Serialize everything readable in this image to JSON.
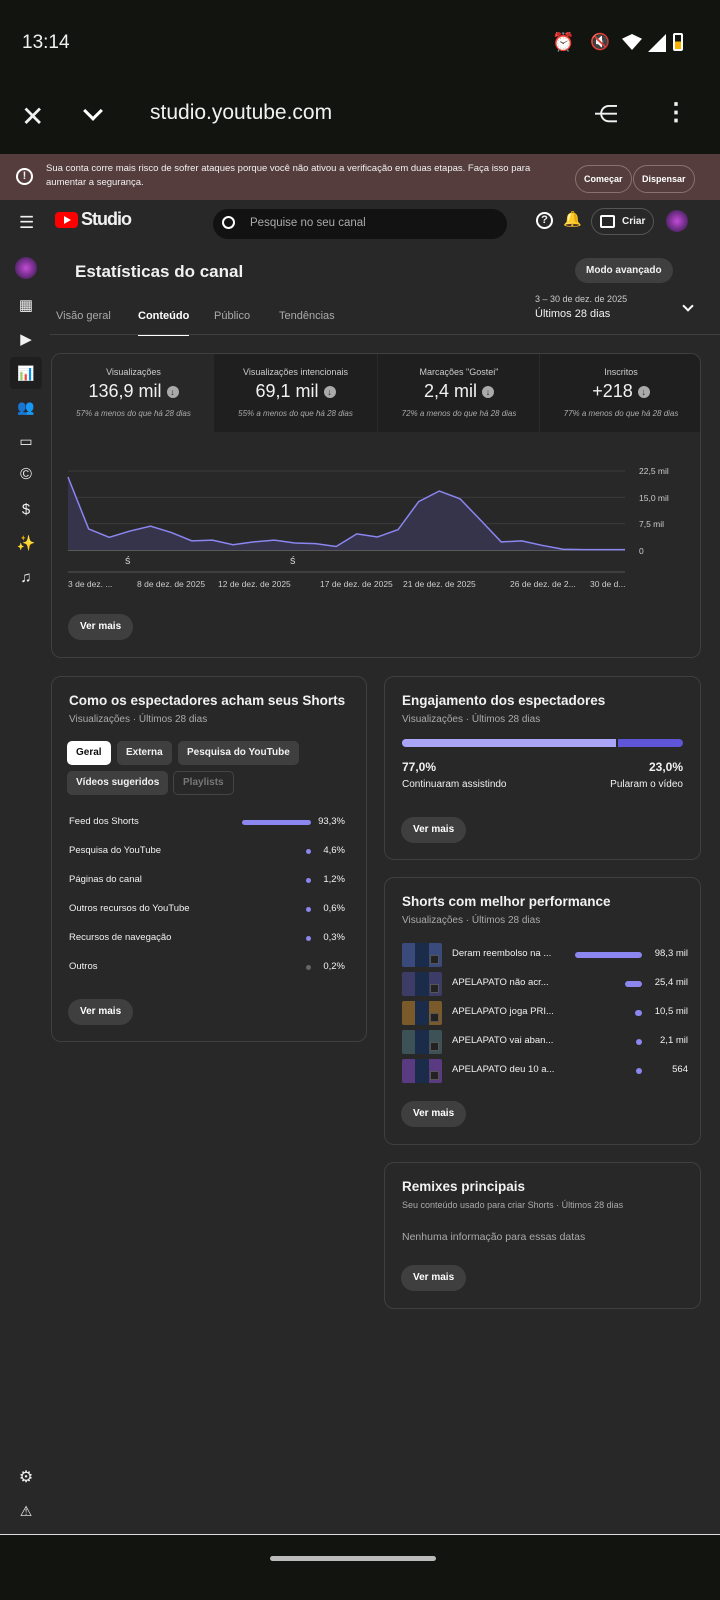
{
  "status": {
    "time": "13:14"
  },
  "browser": {
    "url": "studio.youtube.com"
  },
  "banner": {
    "text": "Sua conta corre mais risco de sofrer ataques porque você não ativou a verificação em duas etapas. Faça isso para aumentar a segurança.",
    "start": "Começar",
    "dismiss": "Dispensar"
  },
  "header": {
    "logo": "Studio",
    "search_placeholder": "Pesquise no seu canal",
    "create": "Criar"
  },
  "page": {
    "title": "Estatísticas do canal",
    "advanced": "Modo avançado",
    "tabs": [
      "Visão geral",
      "Conteúdo",
      "Público",
      "Tendências"
    ],
    "active_tab": "Conteúdo",
    "date_range": "3 – 30 de dez. de 2025",
    "period": "Últimos 28 dias"
  },
  "stats": [
    {
      "label": "Visualizações",
      "value": "136,9 mil",
      "change": "57% a menos do que há 28 dias"
    },
    {
      "label": "Visualizações intencionais",
      "value": "69,1 mil",
      "change": "55% a menos do que há 28 dias"
    },
    {
      "label": "Marcações \"Gostei\"",
      "value": "2,4 mil",
      "change": "72% a menos do que há 28 dias"
    },
    {
      "label": "Inscritos",
      "value": "+218",
      "change": "77% a menos do que há 28 dias"
    }
  ],
  "chart_data": {
    "type": "area",
    "series": [
      {
        "name": "Visualizações (mil)",
        "values": [
          20.8,
          6.0,
          3.6,
          5.4,
          6.8,
          5.0,
          2.6,
          2.8,
          1.5,
          2.3,
          2.8,
          2.0,
          1.8,
          1.0,
          4.6,
          3.7,
          5.8,
          13.8,
          16.8,
          14.6,
          8.5,
          2.3,
          2.6,
          1.3,
          0.2,
          0.1,
          0.1,
          0.1
        ]
      }
    ],
    "x_start_day": 3,
    "ylim": [
      0,
      22.5
    ],
    "yticks": [
      "22,5 mil",
      "15,0 mil",
      "7,5 mil",
      "0"
    ],
    "xticks": [
      "3 de dez. ...",
      "8 de dez. de 2025",
      "12 de dez. de 2025",
      "17 de dez. de 2025",
      "21 de dez. de 2025",
      "26 de dez. de 2...",
      "30 de d..."
    ],
    "color": "#8b86f0"
  },
  "see_more": "Ver mais",
  "traffic": {
    "title": "Como os espectadores acham seus Shorts",
    "subtitle": "Visualizações · Últimos 28 dias",
    "chips": [
      "Geral",
      "Externa",
      "Pesquisa do YouTube",
      "Vídeos sugeridos",
      "Playlists"
    ],
    "rows": [
      {
        "label": "Feed dos Shorts",
        "value": "93,3%",
        "pct": 93.3
      },
      {
        "label": "Pesquisa do YouTube",
        "value": "4,6%",
        "pct": 4.6
      },
      {
        "label": "Páginas do canal",
        "value": "1,2%",
        "pct": 1.2
      },
      {
        "label": "Outros recursos do YouTube",
        "value": "0,6%",
        "pct": 0.6
      },
      {
        "label": "Recursos de navegação",
        "value": "0,3%",
        "pct": 0.3
      },
      {
        "label": "Outros",
        "value": "0,2%",
        "pct": 0.2
      }
    ]
  },
  "engagement": {
    "title": "Engajamento dos espectadores",
    "subtitle": "Visualizações · Últimos 28 dias",
    "kept": "77,0%",
    "kept_label": "Continuaram assistindo",
    "kept_pct": 77,
    "skipped": "23,0%",
    "skipped_label": "Pularam o vídeo"
  },
  "top_shorts": {
    "title": "Shorts com melhor performance",
    "subtitle": "Visualizações · Últimos 28 dias",
    "items": [
      {
        "title": "Deram reembolso na ...",
        "value": "98,3 mil",
        "n": 98.3,
        "color": "#3a4a7a"
      },
      {
        "title": "APELAPATO não acr...",
        "value": "25,4 mil",
        "n": 25.4,
        "color": "#3c3c66"
      },
      {
        "title": "APELAPATO joga PRI...",
        "value": "10,5 mil",
        "n": 10.5,
        "color": "#7a5a2a"
      },
      {
        "title": "APELAPATO vai aban...",
        "value": "2,1 mil",
        "n": 2.1,
        "color": "#3d5257"
      },
      {
        "title": "APELAPATO deu 10 a...",
        "value": "564",
        "n": 0.564,
        "color": "#5a3a80"
      }
    ]
  },
  "remixes": {
    "title": "Remixes principais",
    "subtitle": "Seu conteúdo usado para criar Shorts · Últimos 28 dias",
    "empty": "Nenhuma informação para essas datas"
  }
}
